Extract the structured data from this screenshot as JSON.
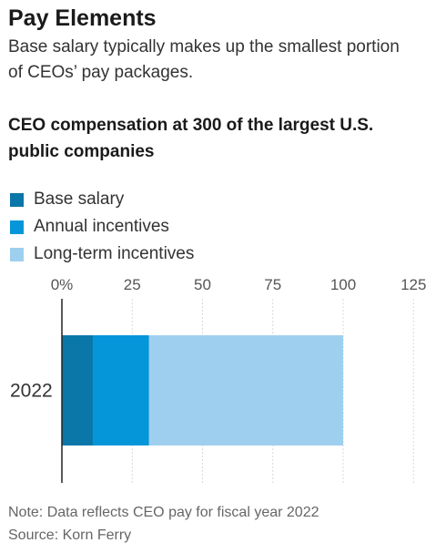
{
  "headline": "Pay Elements",
  "dek": "Base salary typically makes up the smallest portion of CEOs’ pay packages.",
  "chart_title": "CEO compensation at 300 of the largest U.S. public companies",
  "legend": [
    {
      "label": "Base salary",
      "color": "#0a77a8"
    },
    {
      "label": "Annual incentives",
      "color": "#0596da"
    },
    {
      "label": "Long-term incentives",
      "color": "#9fcfee"
    }
  ],
  "notes": {
    "note": "Note: Data reflects CEO pay for fiscal year 2022",
    "source": "Source: Korn Ferry"
  },
  "chart_data": {
    "type": "bar",
    "orientation": "horizontal",
    "stacked": true,
    "title": "CEO compensation at 300 of the largest U.S. public companies",
    "categories": [
      "2022"
    ],
    "series": [
      {
        "name": "Base salary",
        "values": [
          11
        ],
        "color": "#0a77a8"
      },
      {
        "name": "Annual incentives",
        "values": [
          20
        ],
        "color": "#0596da"
      },
      {
        "name": "Long-term incentives",
        "values": [
          69
        ],
        "color": "#9fcfee"
      }
    ],
    "xlim": [
      0,
      125
    ],
    "x_ticks": [
      0,
      25,
      50,
      75,
      100,
      125
    ],
    "x_tick_labels": [
      "0%",
      "25",
      "50",
      "75",
      "100",
      "125"
    ],
    "grid": true,
    "legend_position": "top-left"
  }
}
